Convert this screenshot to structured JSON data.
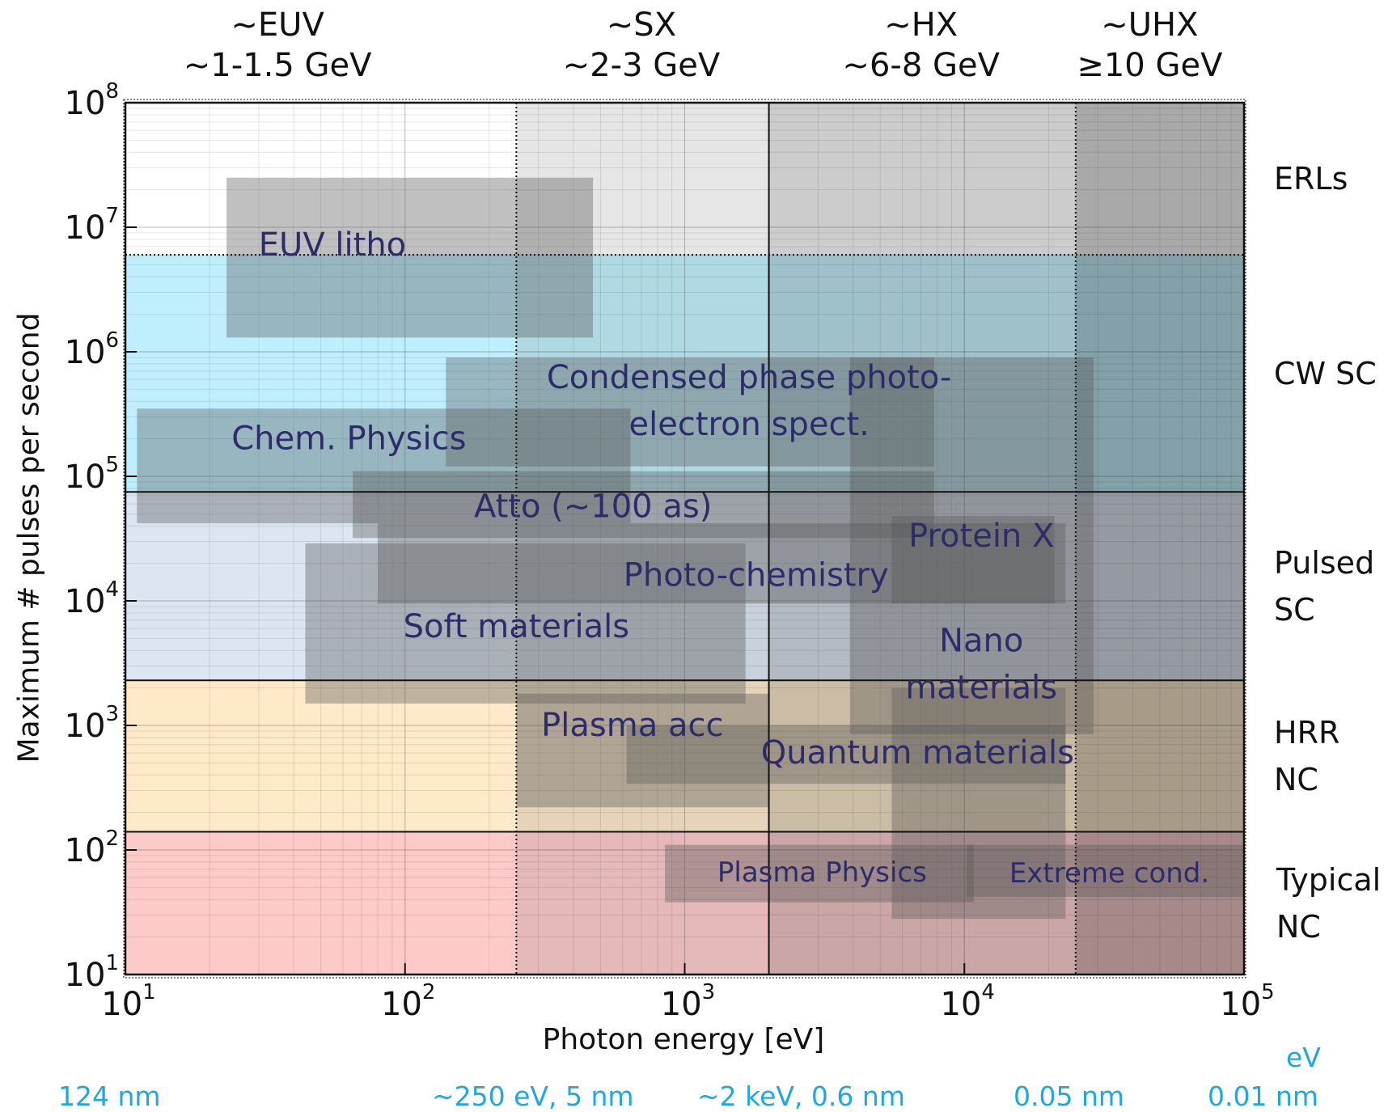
{
  "chart_data": {
    "type": "area",
    "title": "",
    "xlabel": "Photon energy [eV]",
    "ylabel": "Maximum # pulses per second",
    "x_scale": "log",
    "y_scale": "log",
    "xlim": [
      10,
      100000
    ],
    "ylim": [
      10,
      100000000
    ],
    "x_ticks": [
      {
        "base": "10",
        "exp": "1",
        "value": 10
      },
      {
        "base": "10",
        "exp": "2",
        "value": 100
      },
      {
        "base": "10",
        "exp": "3",
        "value": 1000
      },
      {
        "base": "10",
        "exp": "4",
        "value": 10000
      },
      {
        "base": "10",
        "exp": "5",
        "value": 100000
      }
    ],
    "y_ticks": [
      {
        "base": "10",
        "exp": "1",
        "value": 10
      },
      {
        "base": "10",
        "exp": "2",
        "value": 100
      },
      {
        "base": "10",
        "exp": "3",
        "value": 1000
      },
      {
        "base": "10",
        "exp": "4",
        "value": 10000
      },
      {
        "base": "10",
        "exp": "5",
        "value": 100000
      },
      {
        "base": "10",
        "exp": "6",
        "value": 1000000
      },
      {
        "base": "10",
        "exp": "7",
        "value": 10000000
      },
      {
        "base": "10",
        "exp": "8",
        "value": 100000000
      }
    ],
    "grid": true,
    "column_titles": [
      {
        "line1": "~EUV",
        "line2": "~1-1.5 GeV",
        "x_center": 35
      },
      {
        "line1": "~SX",
        "line2": "~2-3 GeV",
        "x_center": 700
      },
      {
        "line1": "~HX",
        "line2": "~6-8 GeV",
        "x_center": 7000
      },
      {
        "line1": "~UHX",
        "line2": "≥10 GeV",
        "x_center": 46000
      }
    ],
    "columns": [
      {
        "name": "EUV",
        "x": [
          10,
          250
        ],
        "shade": "#ffffff",
        "opacity": 0
      },
      {
        "name": "SX",
        "x": [
          250,
          2000
        ],
        "shade": "#777777",
        "opacity": 0.18
      },
      {
        "name": "HX",
        "x": [
          2000,
          25000
        ],
        "shade": "#555555",
        "opacity": 0.3
      },
      {
        "name": "UHX",
        "x": [
          25000,
          100000
        ],
        "shade": "#333333",
        "opacity": 0.42
      }
    ],
    "column_boundaries": [
      {
        "x": 250,
        "style": "dotted"
      },
      {
        "x": 2000,
        "style": "solid"
      },
      {
        "x": 25000,
        "style": "dotted"
      }
    ],
    "rows": [
      {
        "line1": "ERLs",
        "line2": "",
        "y": [
          6000000,
          100000000
        ],
        "color": "#ffffff"
      },
      {
        "line1": "CW SC",
        "line2": "",
        "y": [
          75000,
          6000000
        ],
        "color": "#bfeffd"
      },
      {
        "line1": "Pulsed",
        "line2": "SC",
        "y": [
          2300,
          75000
        ],
        "color": "#dce6f3"
      },
      {
        "line1": "HRR",
        "line2": "NC",
        "y": [
          140,
          2300
        ],
        "color": "#fee9c8"
      },
      {
        "line1": "Typical",
        "line2": "NC",
        "y": [
          10,
          140
        ],
        "color": "#fec9c9"
      }
    ],
    "applications": [
      {
        "line1": "EUV litho",
        "line2": "",
        "x": [
          23,
          470
        ],
        "y": [
          1300000,
          25000000
        ],
        "label_at": [
          55,
          7200000
        ]
      },
      {
        "line1": "Chem. Physics",
        "line2": "",
        "x": [
          11,
          640
        ],
        "y": [
          42000,
          350000
        ],
        "label_at": [
          63,
          200000
        ]
      },
      {
        "line1": "Condensed phase photo-",
        "line2": "electron spect.",
        "x": [
          140,
          7800
        ],
        "y": [
          120000,
          900000
        ],
        "label_at": [
          1700,
          390000
        ]
      },
      {
        "line1": "Atto (~100 as)",
        "line2": "",
        "x": [
          65,
          7800
        ],
        "y": [
          32000,
          110000
        ],
        "label_at": [
          470,
          57000
        ]
      },
      {
        "line1": "Protein  X",
        "line2": "",
        "x": [
          5500,
          21000
        ],
        "y": [
          9500,
          48000
        ],
        "label_at": [
          11500,
          33000
        ]
      },
      {
        "line1": "Photo-chemistry",
        "line2": "",
        "x": [
          80,
          23000
        ],
        "y": [
          9500,
          42000
        ],
        "label_at": [
          1800,
          16000
        ]
      },
      {
        "line1": "Soft materials",
        "line2": "",
        "x": [
          44,
          1650
        ],
        "y": [
          1500,
          29000
        ],
        "label_at": [
          250,
          6200
        ]
      },
      {
        "line1": "Nano",
        "line2": "materials",
        "x": [
          3900,
          29000
        ],
        "y": [
          850,
          900000
        ],
        "label_at": [
          11500,
          3000
        ]
      },
      {
        "line1": "Plasma acc",
        "line2": "",
        "x": [
          250,
          2000
        ],
        "y": [
          220,
          1800
        ],
        "label_at": [
          650,
          1000
        ]
      },
      {
        "line1": "Quantum materials",
        "line2": "",
        "x": [
          620,
          23000
        ],
        "y": [
          340,
          1000
        ],
        "label_at": [
          6800,
          600
        ]
      },
      {
        "line1": "Plasma Physics",
        "line2": "",
        "x": [
          850,
          10800
        ],
        "y": [
          38,
          110
        ],
        "label_at": [
          3100,
          68
        ]
      },
      {
        "line1": "Extreme cond.",
        "line2": "",
        "x": [
          5500,
          23000
        ],
        "y": [
          28,
          2000
        ],
        "label_at": [
          0,
          0
        ]
      },
      {
        "line1": "",
        "line2": "",
        "x": [
          10200,
          100000
        ],
        "y": [
          42,
          110
        ],
        "label_at": [
          33000,
          66
        ]
      }
    ],
    "extra_labels": [
      {
        "text": "Extreme cond.",
        "x": 33000,
        "y": 66
      }
    ]
  },
  "bottom_notes": [
    {
      "text": "124 nm",
      "left": 72
    },
    {
      "text": "~250 eV, 5 nm",
      "left": 534
    },
    {
      "text": "~2 keV, 0.6 nm",
      "left": 862
    },
    {
      "text": "0.05 nm",
      "left": 1253
    },
    {
      "text": "0.01 nm",
      "left": 1493
    }
  ],
  "bottom_fragment": "eV",
  "colors": {
    "text_dark_blue": "#2d2c6b",
    "app_fill": "#5a5a5a",
    "note_blue": "#1fa7e0"
  }
}
